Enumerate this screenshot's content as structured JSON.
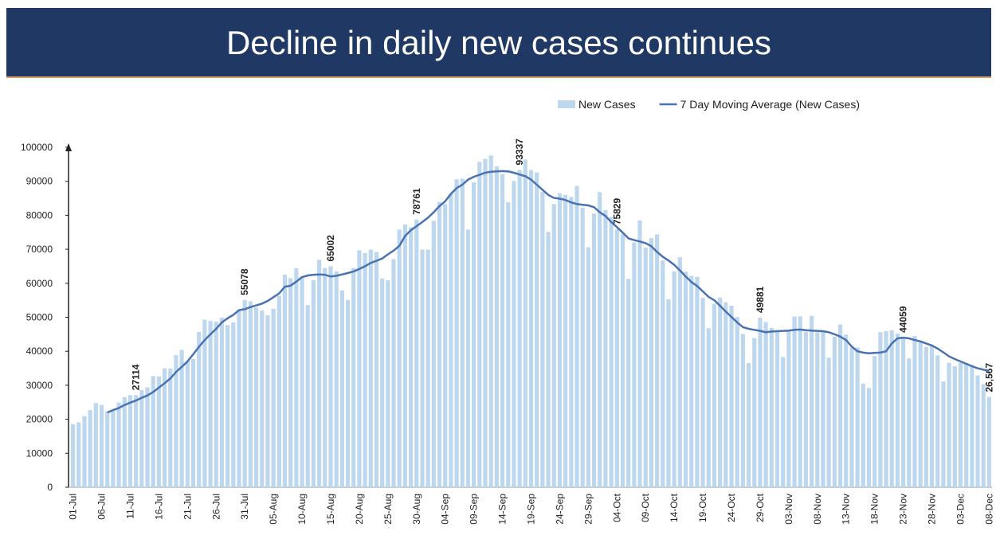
{
  "chart_data": {
    "type": "bar_line",
    "title": "Decline in daily new cases continues",
    "ylim": [
      0,
      100000
    ],
    "yticks": [
      0,
      10000,
      20000,
      30000,
      40000,
      50000,
      60000,
      70000,
      80000,
      90000,
      100000
    ],
    "legend": "top-right",
    "categories": [
      "01-Jul",
      null,
      null,
      null,
      null,
      "06-Jul",
      null,
      null,
      null,
      null,
      "11-Jul",
      null,
      null,
      null,
      null,
      "16-Jul",
      null,
      null,
      null,
      null,
      "21-Jul",
      null,
      null,
      null,
      null,
      "26-Jul",
      null,
      null,
      null,
      null,
      "31-Jul",
      null,
      null,
      null,
      null,
      "05-Aug",
      null,
      null,
      null,
      null,
      "10-Aug",
      null,
      null,
      null,
      null,
      "15-Aug",
      null,
      null,
      null,
      null,
      "20-Aug",
      null,
      null,
      null,
      null,
      "25-Aug",
      null,
      null,
      null,
      null,
      "30-Aug",
      null,
      null,
      null,
      null,
      "04-Sep",
      null,
      null,
      null,
      null,
      "09-Sep",
      null,
      null,
      null,
      null,
      "14-Sep",
      null,
      null,
      null,
      null,
      "19-Sep",
      null,
      null,
      null,
      null,
      "24-Sep",
      null,
      null,
      null,
      null,
      "29-Sep",
      null,
      null,
      null,
      null,
      "04-Oct",
      null,
      null,
      null,
      null,
      "09-Oct",
      null,
      null,
      null,
      null,
      "14-Oct",
      null,
      null,
      null,
      null,
      "19-Oct",
      null,
      null,
      null,
      null,
      "24-Oct",
      null,
      null,
      null,
      null,
      "29-Oct",
      null,
      null,
      null,
      null,
      "03-Nov",
      null,
      null,
      null,
      null,
      "08-Nov",
      null,
      null,
      null,
      null,
      "13-Nov",
      null,
      null,
      null,
      null,
      "18-Nov",
      null,
      null,
      null,
      null,
      "23-Nov",
      null,
      null,
      null,
      null,
      "28-Nov",
      null,
      null,
      null,
      null,
      "03-Dec",
      null,
      null,
      null,
      null,
      "08-Dec"
    ],
    "series": [
      {
        "name": "New Cases",
        "kind": "bar",
        "color": "#bdd7ee",
        "values": [
          18600,
          19100,
          20900,
          22700,
          24800,
          24200,
          22300,
          22800,
          24900,
          26500,
          27100,
          27114,
          28600,
          29400,
          32700,
          32600,
          35000,
          34900,
          38900,
          40400,
          37100,
          37700,
          45700,
          49300,
          48900,
          48700,
          49900,
          47700,
          48500,
          52100,
          55078,
          54700,
          52900,
          52000,
          50600,
          52500,
          56300,
          62500,
          61500,
          64400,
          62000,
          53600,
          60900,
          66900,
          64500,
          65002,
          63500,
          57900,
          55100,
          64500,
          69700,
          68900,
          69900,
          69200,
          61400,
          60900,
          67100,
          75800,
          77300,
          76500,
          78761,
          69900,
          69900,
          78400,
          83900,
          83300,
          86400,
          90600,
          90800,
          75800,
          89700,
          95700,
          96600,
          97600,
          94400,
          92100,
          83800,
          90100,
          93337,
          96400,
          93300,
          92600,
          86900,
          75100,
          83300,
          86500,
          86000,
          85400,
          88600,
          82200,
          70600,
          80500,
          86800,
          81500,
          79500,
          75829,
          74400,
          61300,
          72000,
          78500,
          70500,
          73300,
          74400,
          66700,
          55300,
          63500,
          67700,
          63400,
          62200,
          61900,
          55700,
          46800,
          54000,
          55800,
          54400,
          53400,
          50100,
          45100,
          36500,
          43900,
          49881,
          48600,
          46900,
          46200,
          38300,
          46300,
          50200,
          50300,
          45700,
          50400,
          45600,
          45900,
          38100,
          44300,
          47900,
          44900,
          41100,
          41100,
          30500,
          29200,
          38600,
          45600,
          45900,
          46200,
          45200,
          44059,
          37900,
          44500,
          43100,
          41300,
          41800,
          38800,
          31100,
          36600,
          35600,
          36600,
          36600,
          36000,
          32900,
          30300,
          26567
        ],
        "value_labels": [
          null,
          null,
          null,
          null,
          null,
          null,
          null,
          null,
          null,
          null,
          null,
          "27114",
          null,
          null,
          null,
          null,
          null,
          null,
          null,
          null,
          null,
          null,
          null,
          null,
          null,
          null,
          null,
          null,
          null,
          null,
          "55078",
          null,
          null,
          null,
          null,
          null,
          null,
          null,
          null,
          null,
          null,
          null,
          null,
          null,
          null,
          "65002",
          null,
          null,
          null,
          null,
          null,
          null,
          null,
          null,
          null,
          null,
          null,
          null,
          null,
          null,
          "78761",
          null,
          null,
          null,
          null,
          null,
          null,
          null,
          null,
          null,
          null,
          null,
          null,
          null,
          null,
          null,
          null,
          null,
          "93337",
          null,
          null,
          null,
          null,
          null,
          null,
          null,
          null,
          null,
          null,
          null,
          null,
          null,
          null,
          null,
          null,
          "75829",
          null,
          null,
          null,
          null,
          null,
          null,
          null,
          null,
          null,
          null,
          null,
          null,
          null,
          null,
          null,
          null,
          null,
          null,
          null,
          null,
          null,
          null,
          null,
          null,
          "49881",
          null,
          null,
          null,
          null,
          null,
          null,
          null,
          null,
          null,
          null,
          null,
          null,
          null,
          null,
          null,
          null,
          null,
          null,
          null,
          null,
          null,
          null,
          null,
          null,
          "44059",
          null,
          null,
          null,
          null,
          null,
          null,
          null,
          null,
          null,
          null,
          null,
          null,
          null,
          null,
          "26,567"
        ]
      },
      {
        "name": "7 Day Moving Average (New Cases)",
        "kind": "line",
        "color": "#4a72b0",
        "values": [
          null,
          null,
          null,
          null,
          null,
          null,
          22000,
          22700,
          23300,
          24200,
          24900,
          25500,
          26300,
          27000,
          28000,
          29300,
          30600,
          32000,
          33900,
          35400,
          37000,
          39100,
          41300,
          43300,
          45000,
          46600,
          48500,
          49700,
          50700,
          52100,
          52400,
          53000,
          53500,
          54000,
          54800,
          55900,
          57000,
          59000,
          59300,
          60500,
          61800,
          62300,
          62500,
          62600,
          62500,
          62000,
          62200,
          62600,
          63000,
          63500,
          64200,
          65000,
          66000,
          66600,
          67300,
          68500,
          69600,
          71000,
          73900,
          75600,
          76800,
          78000,
          79300,
          80900,
          82700,
          84100,
          86300,
          88000,
          89000,
          90500,
          91300,
          91900,
          92500,
          92800,
          92900,
          93000,
          92900,
          92500,
          92000,
          91500,
          90500,
          89000,
          87500,
          86000,
          85100,
          84900,
          84500,
          83800,
          83300,
          83100,
          82900,
          82400,
          80900,
          79800,
          78000,
          76500,
          74900,
          73200,
          72700,
          72300,
          71800,
          70900,
          69200,
          67800,
          66700,
          65400,
          63800,
          62000,
          60400,
          59200,
          57600,
          56000,
          55000,
          53400,
          51700,
          50100,
          48500,
          47100,
          46600,
          46300,
          46000,
          45600,
          45800,
          45900,
          46000,
          46100,
          46300,
          46400,
          46200,
          46100,
          46000,
          45900,
          45600,
          45000,
          44300,
          43300,
          41400,
          40000,
          39600,
          39400,
          39500,
          39600,
          40000,
          42300,
          43800,
          44000,
          43800,
          43300,
          42900,
          42300,
          41700,
          40800,
          39700,
          38500,
          37700,
          37000,
          36300,
          35600,
          35000,
          34600,
          34200
        ]
      }
    ]
  }
}
